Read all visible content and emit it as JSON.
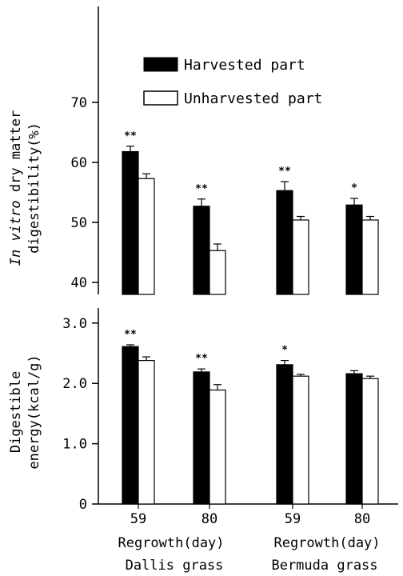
{
  "chart_data": [
    {
      "type": "bar",
      "ylabel_line1_italic": "In vitro",
      "ylabel_line1_rest": " dry matter",
      "ylabel_line2": "digestibility(%)",
      "ylim": [
        38,
        86
      ],
      "yticks": [
        "40",
        "50",
        "60",
        "70"
      ],
      "categories": [
        "Dallis grass 59",
        "Dallis grass 80",
        "Bermuda grass 59",
        "Bermuda grass 80"
      ],
      "series": [
        {
          "name": "Harvested part",
          "values": [
            61.8,
            52.7,
            55.3,
            52.9
          ],
          "errors": [
            0.9,
            1.2,
            1.5,
            1.1
          ]
        },
        {
          "name": "Unharvested part",
          "values": [
            57.3,
            45.3,
            50.4,
            50.4
          ],
          "errors": [
            0.8,
            1.1,
            0.6,
            0.6
          ]
        }
      ],
      "significance": [
        "**",
        "**",
        "**",
        "*"
      ]
    },
    {
      "type": "bar",
      "ylabel_line1": "Digestible",
      "ylabel_line2": "energy(kcal/g)",
      "ylim": [
        0,
        3.25
      ],
      "yticks": [
        "0",
        "1.0",
        "2.0",
        "3.0"
      ],
      "categories": [
        "Dallis grass 59",
        "Dallis grass 80",
        "Bermuda grass 59",
        "Bermuda grass 80"
      ],
      "series": [
        {
          "name": "Harvested part",
          "values": [
            2.61,
            2.19,
            2.31,
            2.16
          ],
          "errors": [
            0.03,
            0.05,
            0.07,
            0.05
          ]
        },
        {
          "name": "Unharvested part",
          "values": [
            2.38,
            1.89,
            2.12,
            2.08
          ],
          "errors": [
            0.06,
            0.09,
            0.03,
            0.04
          ]
        }
      ],
      "significance": [
        "**",
        "**",
        "*",
        ""
      ]
    }
  ],
  "legend": {
    "harvested": "Harvested part",
    "unharvested": "Unharvested part"
  },
  "xaxis": {
    "tick_labels": [
      "59",
      "80",
      "59",
      "80"
    ],
    "regrowth_label": "Regrowth(day)",
    "group_labels": [
      "Dallis grass",
      "Bermuda grass"
    ]
  },
  "colors": {
    "harvested": "#000000",
    "unharvested": "#ffffff"
  }
}
